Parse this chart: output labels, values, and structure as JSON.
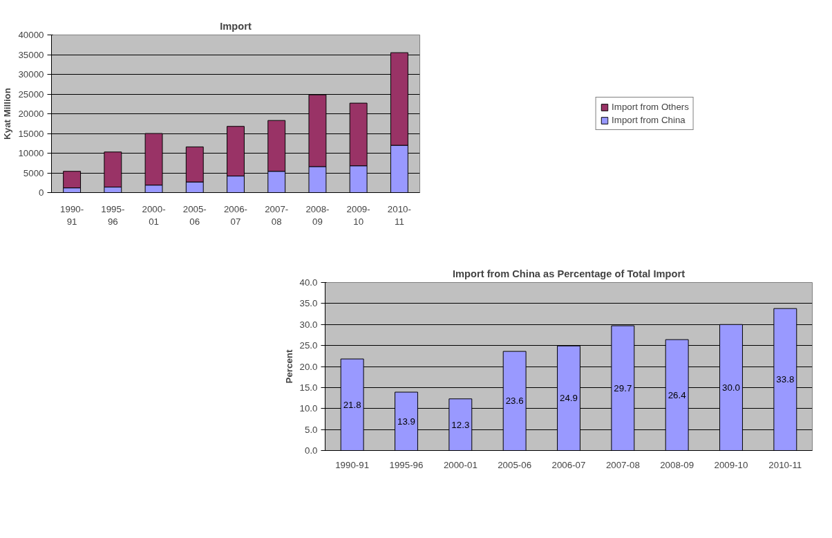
{
  "chart_data": [
    {
      "type": "bar",
      "title": "Import",
      "ylabel": "Kyat Million",
      "stacked": true,
      "categories": [
        "1990-91",
        "1995-96",
        "2000-01",
        "2005-06",
        "2006-07",
        "2007-08",
        "2008-09",
        "2009-10",
        "2010-11"
      ],
      "series": [
        {
          "name": "Import from China",
          "color": "#9999ff",
          "values": [
            1200,
            1400,
            1900,
            2700,
            4200,
            5400,
            6600,
            6800,
            12000
          ]
        },
        {
          "name": "Import from Others",
          "color": "#993366",
          "values": [
            4200,
            8900,
            13100,
            8900,
            12600,
            12900,
            18200,
            15900,
            23500
          ]
        }
      ],
      "ylim": [
        0,
        40000
      ],
      "yticks": [
        0,
        5000,
        10000,
        15000,
        20000,
        25000,
        30000,
        35000,
        40000
      ],
      "grid": "y",
      "legend": "right"
    },
    {
      "type": "bar",
      "title": "Import from China as Percentage of Total Import",
      "ylabel": "Percent",
      "categories": [
        "1990-91",
        "1995-96",
        "2000-01",
        "2005-06",
        "2006-07",
        "2007-08",
        "2008-09",
        "2009-10",
        "2010-11"
      ],
      "series": [
        {
          "color": "#9999ff",
          "values": [
            21.8,
            13.9,
            12.3,
            23.6,
            24.9,
            29.7,
            26.4,
            30.0,
            33.8
          ]
        }
      ],
      "value_labels": [
        "21.8",
        "13.9",
        "12.3",
        "23.6",
        "24.9",
        "29.7",
        "26.4",
        "30.0",
        "33.8"
      ],
      "ylim": [
        0,
        40
      ],
      "yticks": [
        {
          "value": 0,
          "label": "0.0"
        },
        {
          "value": 5,
          "label": "5.0"
        },
        {
          "value": 10,
          "label": "10.0"
        },
        {
          "value": 15,
          "label": "15.0"
        },
        {
          "value": 20,
          "label": "20.0"
        },
        {
          "value": 25,
          "label": "25.0"
        },
        {
          "value": 30,
          "label": "30.0"
        },
        {
          "value": 35,
          "label": "35.0"
        },
        {
          "value": 40,
          "label": "40.0"
        }
      ],
      "grid": "y"
    }
  ]
}
